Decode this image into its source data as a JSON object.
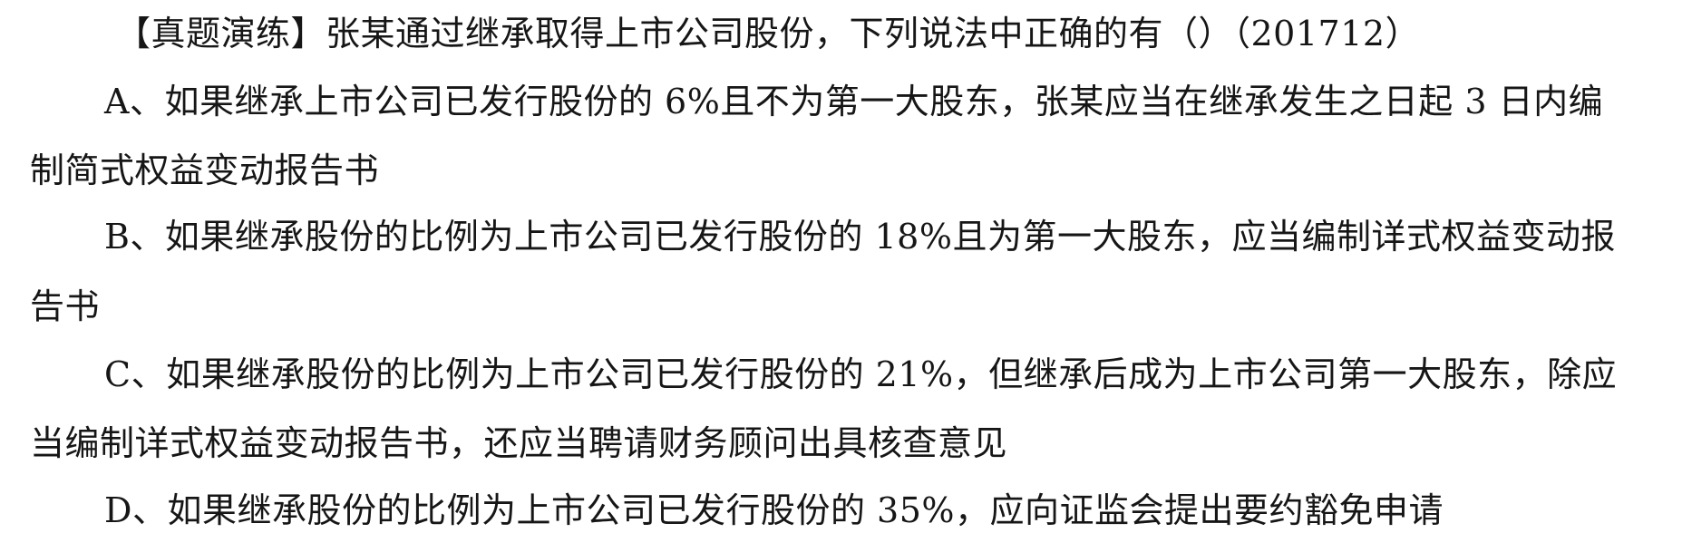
{
  "question": {
    "stem": "【真题演练】张某通过继承取得上市公司股份，下列说法中正确的有（）（201712）",
    "options": [
      {
        "line1": "A、如果继承上市公司已发行股份的 6%且不为第一大股东，张某应当在继承发生之日起 3 日内编",
        "line2": "制简式权益变动报告书"
      },
      {
        "line1": "B、如果继承股份的比例为上市公司已发行股份的 18%且为第一大股东，应当编制详式权益变动报",
        "line2": "告书"
      },
      {
        "line1": "C、如果继承股份的比例为上市公司已发行股份的 21%，但继承后成为上市公司第一大股东，除应",
        "line2": "当编制详式权益变动报告书，还应当聘请财务顾问出具核查意见"
      },
      {
        "line1": "D、如果继承股份的比例为上市公司已发行股份的 35%，应向证监会提出要约豁免申请"
      }
    ]
  },
  "colors": {
    "text": "#161616",
    "background": "#ffffff"
  }
}
